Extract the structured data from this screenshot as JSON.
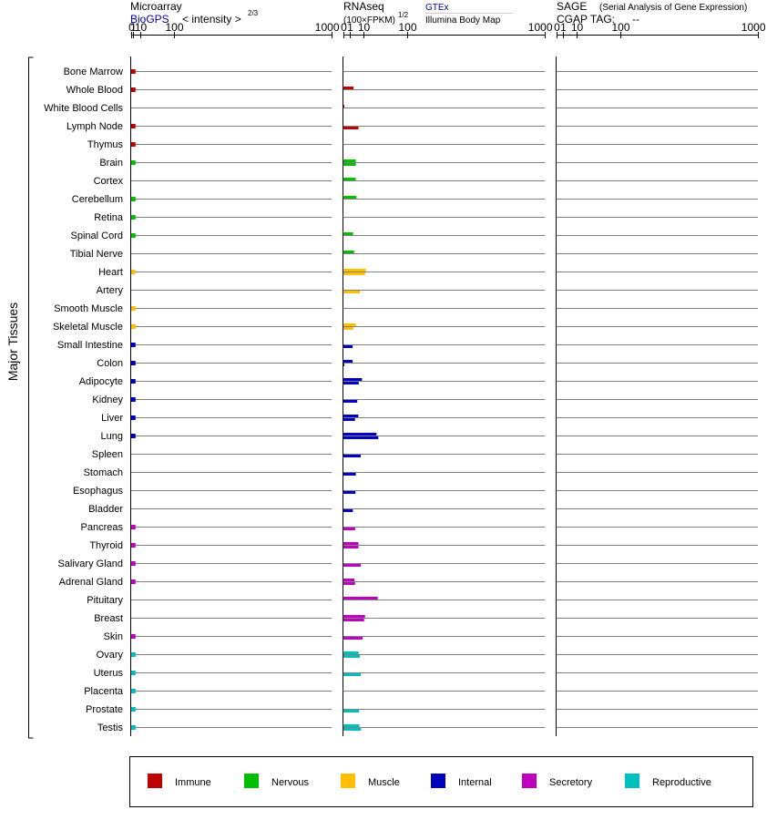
{
  "panels": {
    "microarray": {
      "title": "Microarray",
      "source": "BioGPS",
      "scale_label": "< intensity >",
      "scale_exponent": "2/3"
    },
    "rnaseq": {
      "title": "RNAseq",
      "scale_label": "(100×FPKM)",
      "scale_exponent": "1/2",
      "source_top": "GTEx",
      "source_bottom": "Illumina Body Map"
    },
    "sage": {
      "title": "SAGE",
      "subtitle": "(Serial Analysis of Gene Expression)",
      "cgap_label": "CGAP TAG:",
      "cgap_value": "--"
    }
  },
  "axis_ticks": [
    "0",
    "1",
    "10",
    "100",
    "1000"
  ],
  "group_label": "Major Tissues",
  "colors": {
    "Immune": "#bf0000",
    "Nervous": "#00bf00",
    "Muscle": "#ffbf00",
    "Internal": "#0000bf",
    "Secretory": "#bf00bf",
    "Reproductive": "#00bfbf"
  },
  "legend": [
    "Immune",
    "Nervous",
    "Muscle",
    "Internal",
    "Secretory",
    "Reproductive"
  ],
  "chart_data": {
    "type": "bar",
    "orientation": "horizontal",
    "scale": "power-transformed (0, 1, 10, 100, 1000)",
    "xlim": [
      0,
      1000
    ],
    "categories": [
      "Bone Marrow",
      "Whole Blood",
      "White Blood Cells",
      "Lymph Node",
      "Thymus",
      "Brain",
      "Cortex",
      "Cerebellum",
      "Retina",
      "Spinal Cord",
      "Tibial Nerve",
      "Heart",
      "Artery",
      "Smooth Muscle",
      "Skeletal Muscle",
      "Small Intestine",
      "Colon",
      "Adipocyte",
      "Kidney",
      "Liver",
      "Lung",
      "Spleen",
      "Stomach",
      "Esophagus",
      "Bladder",
      "Pancreas",
      "Thyroid",
      "Salivary Gland",
      "Adrenal Gland",
      "Pituitary",
      "Breast",
      "Skin",
      "Ovary",
      "Uterus",
      "Placenta",
      "Prostate",
      "Testis"
    ],
    "systems": [
      "Immune",
      "Immune",
      "Immune",
      "Immune",
      "Immune",
      "Nervous",
      "Nervous",
      "Nervous",
      "Nervous",
      "Nervous",
      "Nervous",
      "Muscle",
      "Muscle",
      "Muscle",
      "Muscle",
      "Internal",
      "Internal",
      "Internal",
      "Internal",
      "Internal",
      "Internal",
      "Internal",
      "Internal",
      "Internal",
      "Internal",
      "Secretory",
      "Secretory",
      "Secretory",
      "Secretory",
      "Secretory",
      "Secretory",
      "Secretory",
      "Reproductive",
      "Reproductive",
      "Reproductive",
      "Reproductive",
      "Reproductive"
    ],
    "series": [
      {
        "name": "BioGPS",
        "values": [
          3.2,
          3.2,
          null,
          3.2,
          3.2,
          3.2,
          null,
          3.2,
          3.2,
          3.2,
          null,
          3,
          null,
          3.2,
          3.4,
          3.2,
          3.2,
          3.2,
          3.2,
          3.2,
          3.2,
          null,
          null,
          null,
          null,
          3.2,
          3.2,
          3.2,
          3.2,
          null,
          null,
          3.2,
          3.2,
          3.2,
          3.2,
          3.2,
          3.2
        ]
      },
      {
        "name": "GTEx",
        "values": [
          null,
          2.5,
          0.01,
          null,
          null,
          3.8,
          3.7,
          4.2,
          null,
          2.3,
          2.8,
          12.5,
          null,
          null,
          3.9,
          null,
          2.1,
          8.5,
          null,
          5.5,
          27,
          null,
          null,
          null,
          null,
          null,
          5.6,
          null,
          3,
          29,
          11.5,
          null,
          5.7,
          null,
          null,
          null,
          6.3
        ]
      },
      {
        "name": "Illumina Body Map",
        "values": [
          null,
          null,
          null,
          5.6,
          null,
          3.8,
          null,
          null,
          null,
          null,
          null,
          11.5,
          6.7,
          null,
          2.4,
          2.1,
          0.01,
          5.8,
          4.7,
          3.3,
          30,
          7.4,
          3.8,
          3.6,
          2.2,
          3.4,
          5.6,
          7.6,
          3.3,
          null,
          10.6,
          9.1,
          6.6,
          7.6,
          null,
          6.1,
          7.7
        ]
      }
    ]
  }
}
